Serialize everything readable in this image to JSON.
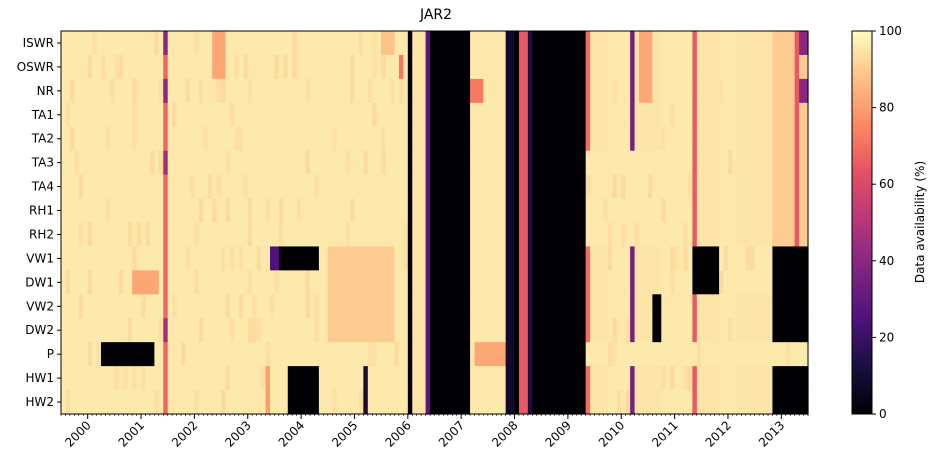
{
  "chart_data": {
    "type": "heatmap",
    "title": "JAR2",
    "colorbar_label": "Data availability (%)",
    "colorbar_ticks": [
      0,
      20,
      40,
      60,
      80,
      100
    ],
    "value_range": [
      0,
      100
    ],
    "colormap": "magma",
    "rows": [
      "ISWR",
      "OSWR",
      "NR",
      "TA1",
      "TA2",
      "TA3",
      "TA4",
      "RH1",
      "RH2",
      "VW1",
      "DW1",
      "VW2",
      "DW2",
      "P",
      "HW1",
      "HW2"
    ],
    "x_tick_labels": [
      "2000",
      "2001",
      "2002",
      "2003",
      "2004",
      "2005",
      "2006",
      "2007",
      "2008",
      "2009",
      "2010",
      "2011",
      "2012",
      "2013"
    ],
    "x_start_year": 1999.5,
    "x_end_year": 2013.5,
    "months_per_year": 12,
    "baseline_value": 96,
    "events": [
      {
        "rows": "all",
        "from": 2001.41,
        "to": 2001.5,
        "value": 68
      },
      {
        "rows": [
          0,
          2
        ],
        "from": 2001.41,
        "to": 2001.5,
        "value": 40
      },
      {
        "rows": [
          5,
          12
        ],
        "from": 2001.41,
        "to": 2001.5,
        "value": 45
      },
      {
        "rows": [
          0,
          1
        ],
        "from": 2002.3,
        "to": 2002.6,
        "value": 82
      },
      {
        "rows": [
          0
        ],
        "from": 2005.5,
        "to": 2005.75,
        "value": 88
      },
      {
        "rows": [
          1
        ],
        "from": 2005.83,
        "to": 2005.92,
        "value": 72
      },
      {
        "rows": [
          9,
          10,
          11,
          12
        ],
        "from": 2004.5,
        "to": 2005.75,
        "value": 90
      },
      {
        "rows": [
          10
        ],
        "from": 2000.83,
        "to": 2001.33,
        "value": 82
      },
      {
        "rows": [
          13
        ],
        "from": 2000.25,
        "to": 2001.25,
        "value": 0
      },
      {
        "rows": [
          9
        ],
        "from": 2003.42,
        "to": 2003.58,
        "value": 25
      },
      {
        "rows": [
          9
        ],
        "from": 2003.58,
        "to": 2004.33,
        "value": 0
      },
      {
        "rows": [
          14,
          15
        ],
        "from": 2003.75,
        "to": 2004.33,
        "value": 0
      },
      {
        "rows": [
          14,
          15
        ],
        "from": 2003.3,
        "to": 2003.42,
        "value": 80
      },
      {
        "rows": [
          14,
          15
        ],
        "from": 2005.17,
        "to": 2005.25,
        "value": 10
      },
      {
        "rows": "all",
        "from": 2006.0,
        "to": 2006.08,
        "value": 2
      },
      {
        "rows": "all",
        "from": 2006.08,
        "to": 2006.33,
        "value": 95
      },
      {
        "rows": "all",
        "from": 2006.33,
        "to": 2006.42,
        "value": 28
      },
      {
        "rows": "all",
        "from": 2006.42,
        "to": 2007.17,
        "value": 0
      },
      {
        "rows": "all",
        "from": 2007.17,
        "to": 2007.83,
        "value": 96
      },
      {
        "rows": [
          2
        ],
        "from": 2007.17,
        "to": 2007.42,
        "value": 72
      },
      {
        "rows": [
          13
        ],
        "from": 2007.25,
        "to": 2007.83,
        "value": 82
      },
      {
        "rows": "all",
        "from": 2007.83,
        "to": 2008.0,
        "value": 8
      },
      {
        "rows": "all",
        "from": 2008.0,
        "to": 2008.08,
        "value": 0
      },
      {
        "rows": "all",
        "from": 2008.08,
        "to": 2008.25,
        "value": 65
      },
      {
        "rows": "all",
        "from": 2008.25,
        "to": 2008.33,
        "value": 12
      },
      {
        "rows": "all",
        "from": 2008.33,
        "to": 2009.33,
        "value": 0
      },
      {
        "rows": [
          0,
          1,
          2,
          3,
          4,
          9,
          10,
          11,
          12,
          14,
          15
        ],
        "from": 2009.33,
        "to": 2009.75,
        "value": 95
      },
      {
        "rows": [
          0,
          1,
          2,
          3,
          4,
          9,
          10,
          11,
          12,
          14,
          15
        ],
        "from": 2009.33,
        "to": 2009.42,
        "value": 70
      },
      {
        "rows": [
          0,
          1,
          2,
          3,
          4,
          9,
          10,
          11,
          12,
          14,
          15
        ],
        "from": 2010.17,
        "to": 2010.75,
        "value": 95
      },
      {
        "rows": [
          0,
          1,
          2,
          3,
          4,
          9,
          10,
          11,
          12,
          14,
          15
        ],
        "from": 2010.17,
        "to": 2010.25,
        "value": 35
      },
      {
        "rows": [
          0,
          1,
          2
        ],
        "from": 2010.3,
        "to": 2010.55,
        "value": 82
      },
      {
        "rows": [
          11,
          12
        ],
        "from": 2010.6,
        "to": 2010.75,
        "value": 0
      },
      {
        "rows": [
          0,
          1,
          2,
          3,
          4,
          5,
          6,
          7,
          8,
          9,
          10,
          11,
          12,
          14,
          15
        ],
        "from": 2011.33,
        "to": 2011.83,
        "value": 95
      },
      {
        "rows": [
          0,
          1,
          2,
          3,
          4,
          5,
          6,
          7,
          8,
          9,
          10,
          11,
          12,
          14,
          15
        ],
        "from": 2011.33,
        "to": 2011.42,
        "value": 65
      },
      {
        "rows": [
          9,
          10
        ],
        "from": 2011.33,
        "to": 2011.83,
        "value": 0
      },
      {
        "rows": [
          0,
          1,
          2,
          3,
          4,
          5,
          6,
          7,
          8,
          11,
          12,
          14,
          15
        ],
        "from": 2012.17,
        "to": 2012.83,
        "value": 95
      },
      {
        "rows": [
          0,
          1,
          2,
          3,
          4,
          5,
          6,
          7,
          8,
          9,
          10,
          11,
          12,
          14,
          15
        ],
        "from": 2012.83,
        "to": 2013.5,
        "value": 0
      },
      {
        "rows": [
          0,
          1,
          2,
          3,
          4,
          5,
          6,
          7,
          8
        ],
        "from": 2012.83,
        "to": 2013.5,
        "value": 90
      },
      {
        "rows": [
          0,
          1,
          2,
          3,
          4,
          5,
          6,
          7,
          8
        ],
        "from": 2013.25,
        "to": 2013.33,
        "value": 65
      },
      {
        "rows": [
          0,
          2
        ],
        "from": 2013.33,
        "to": 2013.5,
        "value": 40
      }
    ]
  }
}
